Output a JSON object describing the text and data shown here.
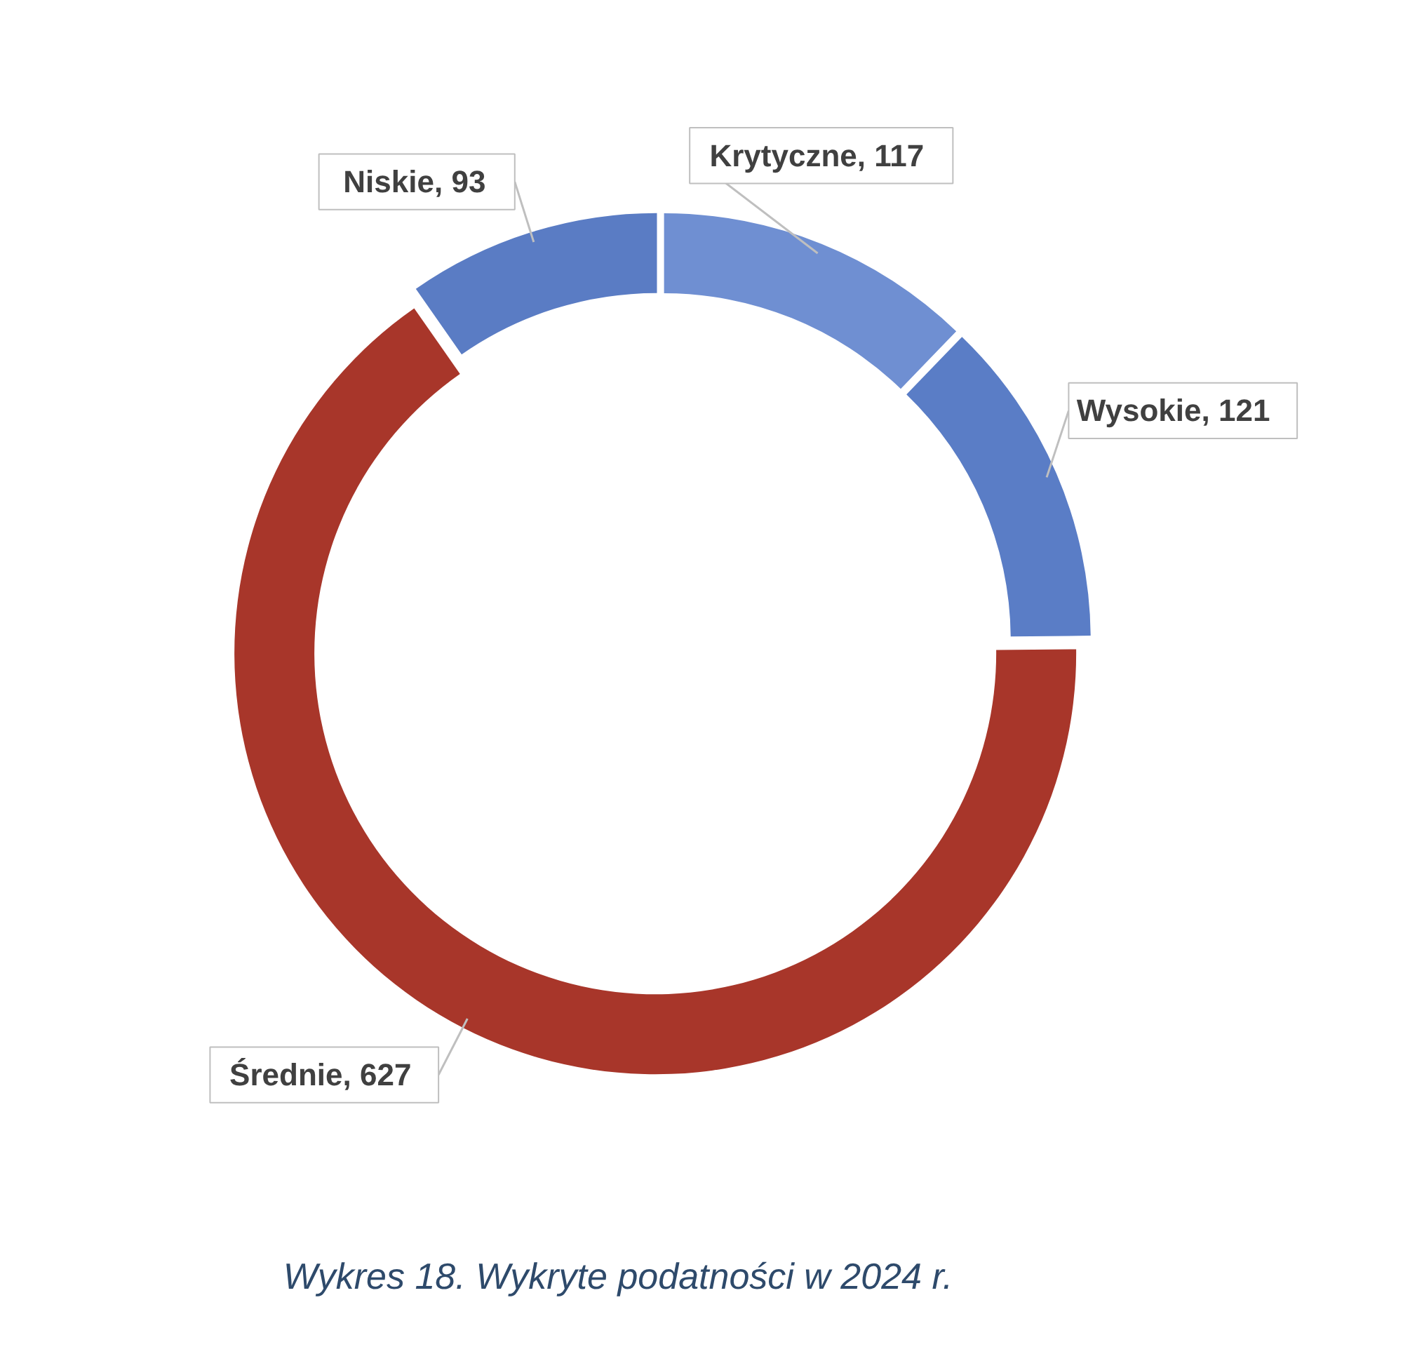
{
  "chart_data": {
    "type": "donut",
    "title": "Wykres 18. Wykryte podatności w 2024 r.",
    "categories": [
      "Krytyczne",
      "Wysokie",
      "Średnie",
      "Niskie"
    ],
    "values": [
      117,
      121,
      627,
      93
    ],
    "colors": [
      "#6f8fd2",
      "#5a7dc6",
      "#a8362a",
      "#5a7cc4"
    ],
    "value_labels": [
      ", 117",
      ", 121",
      ", 627",
      ", 93"
    ]
  }
}
